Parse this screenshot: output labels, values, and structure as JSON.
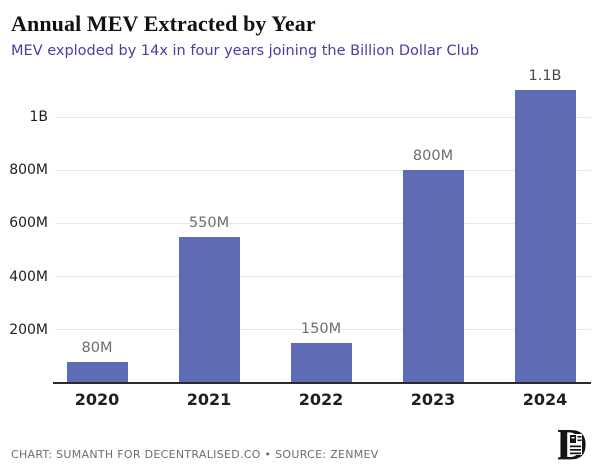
{
  "header": {
    "title": "Annual MEV Extracted by Year",
    "subtitle": "MEV exploded by 14x in four years joining the Billion Dollar Club"
  },
  "chart_data": {
    "type": "bar",
    "title": "Annual MEV Extracted by Year",
    "subtitle": "MEV exploded by 14x in four years joining the Billion Dollar Club",
    "categories": [
      "2020",
      "2021",
      "2022",
      "2023",
      "2024"
    ],
    "values": [
      80,
      550,
      150,
      800,
      1100
    ],
    "value_unit": "millions of dollars",
    "value_labels": [
      "80M",
      "550M",
      "150M",
      "800M",
      "1.1B"
    ],
    "value_label_colors": [
      "#6e6e6e",
      "#6e6e6e",
      "#6e6e6e",
      "#6e6e6e",
      "#4a4a4a"
    ],
    "y_ticks": [
      {
        "value": 200,
        "label": "200M"
      },
      {
        "value": 400,
        "label": "400M"
      },
      {
        "value": 600,
        "label": "600M"
      },
      {
        "value": 800,
        "label": "800M"
      },
      {
        "value": 1000,
        "label": "1B"
      }
    ],
    "ylim": [
      0,
      1150
    ],
    "xlabel": "",
    "ylabel": "",
    "grid": "horizontal",
    "legend": "none",
    "bar_color": "#5d6cb5"
  },
  "colors": {
    "title": "#121212",
    "subtitle_accent": "#5338a2",
    "bar": "#5d6cb5",
    "gridline": "#e8e8e8",
    "axis": "#2b2b2b",
    "tick_text": "#1f1f1f",
    "value_text": "#6e6e6e",
    "footer_text": "#6d6d6d"
  },
  "footer": {
    "credit": "CHART: SUMANTH FOR DECENTRALISED.CO • SOURCE: ZENMEV",
    "logo": "decentralised-d-logo"
  }
}
